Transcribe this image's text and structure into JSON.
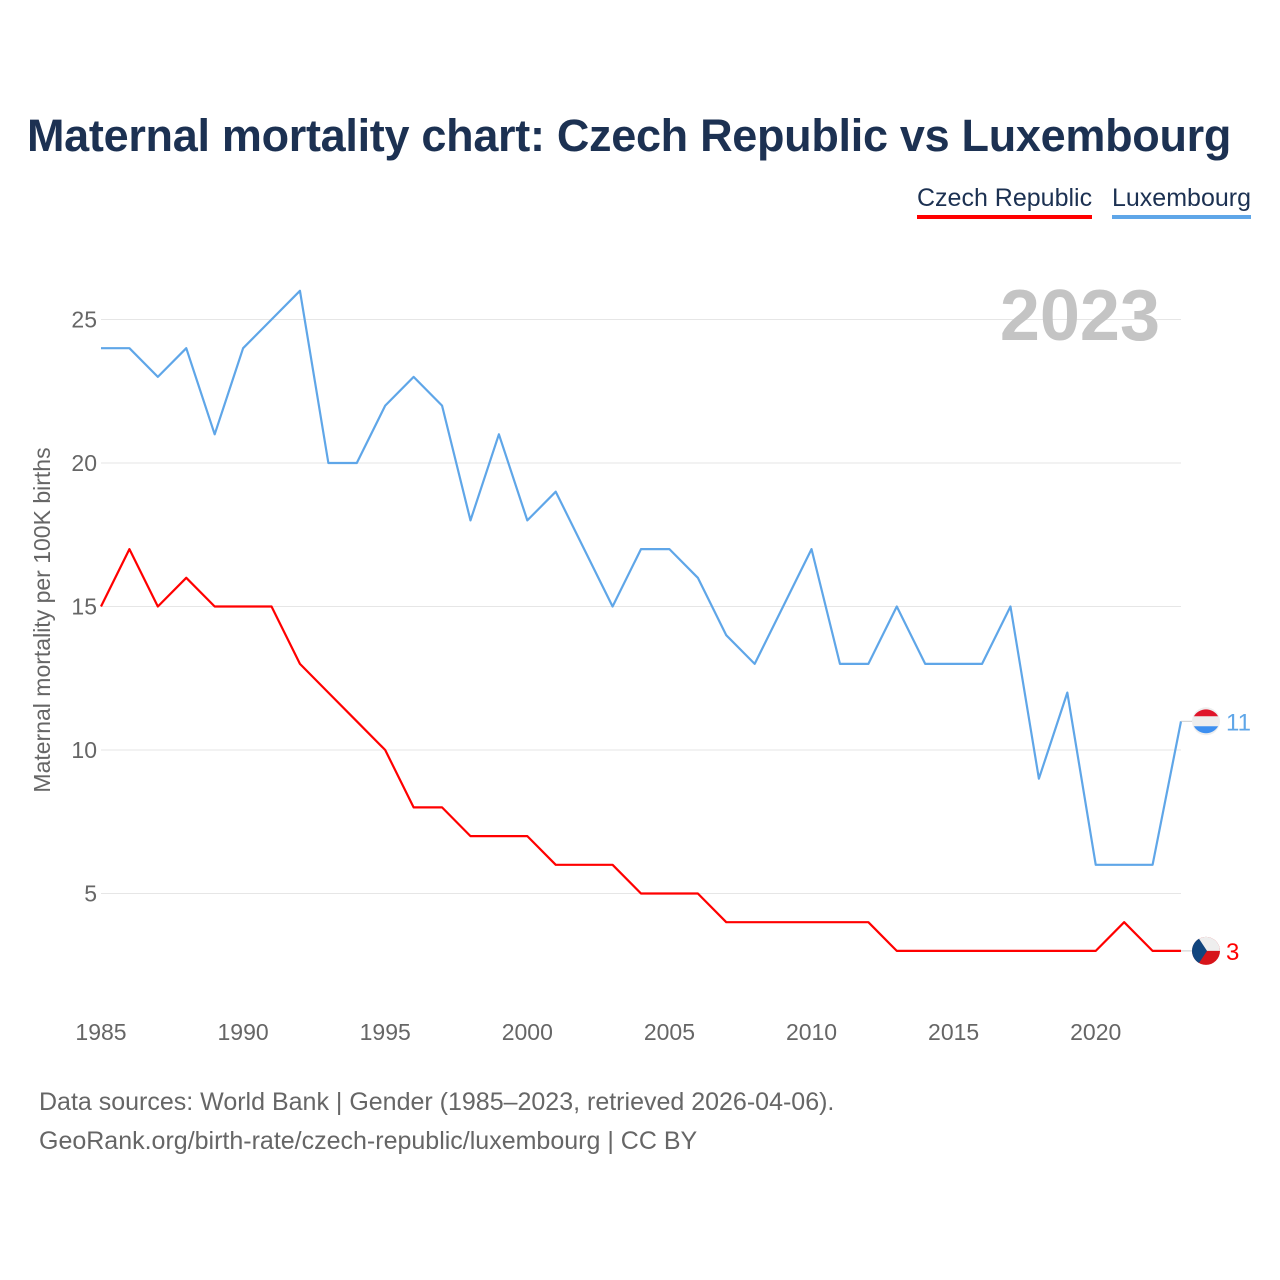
{
  "title": "Maternal mortality chart: Czech Republic vs Luxembourg",
  "footer": {
    "line1": "Data sources: World Bank | Gender (1985–2023, retrieved 2026-04-06).",
    "line2": "GeoRank.org/birth-rate/czech-republic/luxembourg | CC BY"
  },
  "chart_data": {
    "type": "line",
    "title": "Maternal mortality chart: Czech Republic vs Luxembourg",
    "year_label": "2023",
    "xlabel": "",
    "ylabel": "Maternal mortality per 100K births",
    "xlim": [
      1985,
      2023
    ],
    "ylim": [
      0,
      27
    ],
    "x_ticks": [
      1985,
      1990,
      1995,
      2000,
      2005,
      2010,
      2015,
      2020
    ],
    "y_ticks": [
      5,
      10,
      15,
      20,
      25
    ],
    "grid": true,
    "legend_placement": "top-right",
    "x": [
      1985,
      1986,
      1987,
      1988,
      1989,
      1990,
      1991,
      1992,
      1993,
      1994,
      1995,
      1996,
      1997,
      1998,
      1999,
      2000,
      2001,
      2002,
      2003,
      2004,
      2005,
      2006,
      2007,
      2008,
      2009,
      2010,
      2011,
      2012,
      2013,
      2014,
      2015,
      2016,
      2017,
      2018,
      2019,
      2020,
      2021,
      2022,
      2023
    ],
    "series": [
      {
        "name": "Czech Republic",
        "color": "#ff0000",
        "end_label": "3",
        "values": [
          15,
          17,
          15,
          16,
          15,
          15,
          15,
          13,
          12,
          11,
          10,
          8,
          8,
          7,
          7,
          7,
          6,
          6,
          6,
          5,
          5,
          5,
          4,
          4,
          4,
          4,
          4,
          4,
          3,
          3,
          3,
          3,
          3,
          3,
          3,
          3,
          4,
          3,
          3
        ]
      },
      {
        "name": "Luxembourg",
        "color": "#5fa6e8",
        "end_label": "11",
        "values": [
          24,
          24,
          23,
          24,
          21,
          24,
          25,
          26,
          20,
          20,
          22,
          23,
          22,
          18,
          21,
          18,
          19,
          17,
          15,
          17,
          17,
          16,
          14,
          13,
          15,
          17,
          13,
          13,
          15,
          13,
          13,
          13,
          15,
          9,
          12,
          6,
          6,
          6,
          11
        ]
      }
    ]
  }
}
